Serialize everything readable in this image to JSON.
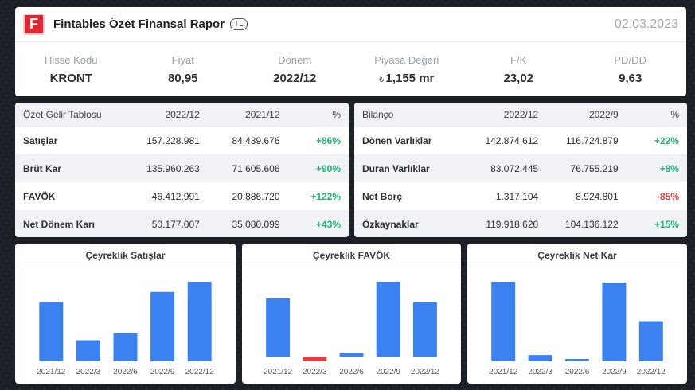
{
  "header": {
    "logo_letter": "F",
    "title": "Fintables Özet Finansal Rapor",
    "currency_badge": "TL",
    "date": "02.03.2023"
  },
  "metrics": [
    {
      "label": "Hisse Kodu",
      "value": "KRONT"
    },
    {
      "label": "Fiyat",
      "value": "80,95"
    },
    {
      "label": "Dönem",
      "value": "2022/12"
    },
    {
      "label": "Piyasa Değeri",
      "symbol": "₺",
      "value": "1,155 mr"
    },
    {
      "label": "F/K",
      "value": "23,02"
    },
    {
      "label": "PD/DD",
      "value": "9,63"
    }
  ],
  "income": {
    "headers": [
      "Özet Gelir Tablosu",
      "2022/12",
      "2021/12",
      "%"
    ],
    "rows": [
      {
        "name": "Satışlar",
        "a": "157.228.981",
        "b": "84.439.676",
        "pct": "+86%"
      },
      {
        "name": "Brüt Kar",
        "a": "135.960.263",
        "b": "71.605.606",
        "pct": "+90%"
      },
      {
        "name": "FAVÖK",
        "a": "46.412.991",
        "b": "20.886.720",
        "pct": "+122%"
      },
      {
        "name": "Net Dönem Karı",
        "a": "50.177.007",
        "b": "35.080.099",
        "pct": "+43%"
      }
    ]
  },
  "balance": {
    "headers": [
      "Bilanço",
      "2022/12",
      "2022/9",
      "%"
    ],
    "rows": [
      {
        "name": "Dönen Varlıklar",
        "a": "142.874.612",
        "b": "116.724.879",
        "pct": "+22%"
      },
      {
        "name": "Duran Varlıklar",
        "a": "83.072.445",
        "b": "76.755.219",
        "pct": "+8%"
      },
      {
        "name": "Net Borç",
        "a": "1.317.104",
        "b": "8.924.801",
        "pct": "-85%"
      },
      {
        "name": "Özkaynaklar",
        "a": "119.918.620",
        "b": "104.136.122",
        "pct": "+15%"
      }
    ]
  },
  "colors": {
    "positive": "#21b573",
    "negative": "#e83d3d",
    "bar": "#3b82f0",
    "bar_negative": "#e83d3d"
  },
  "chart_data": [
    {
      "type": "bar",
      "title": "Çeyreklik Satışlar",
      "categories": [
        "2021/12",
        "2022/3",
        "2022/6",
        "2022/9",
        "2022/12"
      ],
      "values": [
        76,
        27,
        36,
        89,
        102
      ],
      "ylim": [
        0,
        102
      ]
    },
    {
      "type": "bar",
      "title": "Çeyreklik FAVÖK",
      "categories": [
        "2021/12",
        "2022/3",
        "2022/6",
        "2022/9",
        "2022/12"
      ],
      "values": [
        74,
        -6,
        5,
        95,
        69
      ],
      "ylim": [
        -6,
        95
      ]
    },
    {
      "type": "bar",
      "title": "Çeyreklik Net Kar",
      "categories": [
        "2021/12",
        "2022/3",
        "2022/6",
        "2022/9",
        "2022/12"
      ],
      "values": [
        101,
        8,
        2,
        100,
        51
      ],
      "ylim": [
        0,
        101
      ]
    }
  ]
}
